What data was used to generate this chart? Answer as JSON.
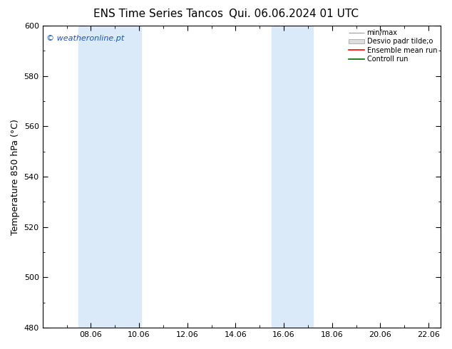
{
  "title_left": "ENS Time Series Tancos",
  "title_right": "Qui. 06.06.2024 01 UTC",
  "ylabel": "Temperature 850 hPa (°C)",
  "ylim": [
    480,
    600
  ],
  "yticks": [
    480,
    500,
    520,
    540,
    560,
    580,
    600
  ],
  "xlim": [
    0.0,
    16.5
  ],
  "xtick_labels": [
    "08.06",
    "10.06",
    "12.06",
    "14.06",
    "16.06",
    "18.06",
    "20.06",
    "22.06"
  ],
  "xtick_positions": [
    2,
    4,
    6,
    8,
    10,
    12,
    14,
    16
  ],
  "shaded_bands": [
    {
      "x_start": 1.5,
      "x_end": 4.1,
      "color": "#daeaf8"
    },
    {
      "x_start": 9.5,
      "x_end": 11.2,
      "color": "#daeaf8"
    }
  ],
  "watermark": "© weatheronline.pt",
  "watermark_color": "#1155cc",
  "background_color": "#ffffff",
  "plot_bg_color": "#ffffff"
}
